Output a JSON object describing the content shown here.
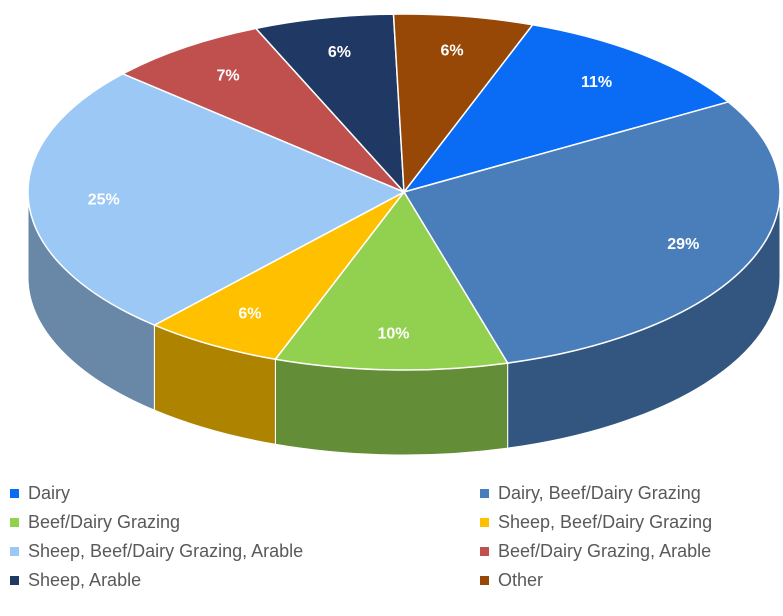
{
  "chart_data": {
    "type": "pie",
    "categories": [
      "Dairy",
      "Dairy, Beef/Dairy Grazing",
      "Beef/Dairy Grazing",
      "Sheep, Beef/Dairy Grazing",
      "Sheep, Beef/Dairy Grazing, Arable",
      "Beef/Dairy Grazing, Arable",
      "Sheep, Arable",
      "Other"
    ],
    "values": [
      11,
      29,
      10,
      6,
      25,
      7,
      6,
      6
    ],
    "value_labels": [
      "11%",
      "29%",
      "10%",
      "6%",
      "25%",
      "7%",
      "6%",
      "6%"
    ],
    "colors": [
      "#0a6cf5",
      "#4a7ebb",
      "#92d050",
      "#ffc000",
      "#9bc8f5",
      "#c0504d",
      "#1f3864",
      "#974706"
    ],
    "legend": "bottom"
  }
}
